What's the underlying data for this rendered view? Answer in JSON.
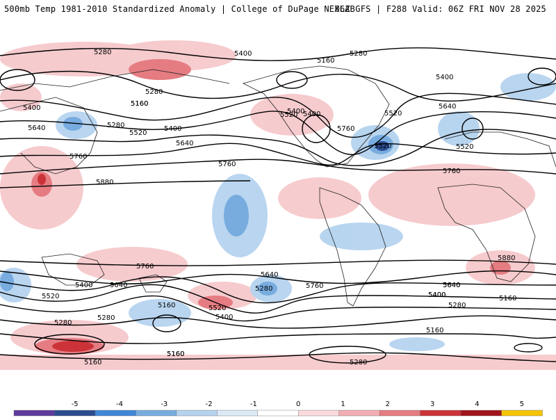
{
  "header": {
    "left": "500mb Temp 1981-2010 Standardized Anomaly | College of DuPage NEXLAB",
    "right": "06Z GFS | F288 Valid: 06Z FRI NOV 28 2025"
  },
  "contour_labels": [
    "5280",
    "5400",
    "5160",
    "5280",
    "5400",
    "5160",
    "5280",
    "5400",
    "5160",
    "5640",
    "5400",
    "5520",
    "5280",
    "5640",
    "5520",
    "5640",
    "5400",
    "5520",
    "5400",
    "5760",
    "5520",
    "5760",
    "5880",
    "5760",
    "5760",
    "5520",
    "5400",
    "5640",
    "5760",
    "5520",
    "5160",
    "5280",
    "5400",
    "5280",
    "5520",
    "5640",
    "5160",
    "5400",
    "5640",
    "5880",
    "5760",
    "5640",
    "5400",
    "5280",
    "5160",
    "5160",
    "5160",
    "5280",
    "5160",
    "5280"
  ],
  "colorbar": {
    "ticks": [
      "-5",
      "-4",
      "-3",
      "-2",
      "-1",
      "0",
      "1",
      "2",
      "3",
      "4",
      "5"
    ],
    "colors": [
      "#5e3b9c",
      "#2b4b8f",
      "#3f86d6",
      "#78acdf",
      "#b5d3ef",
      "#dce9f7",
      "#ffffff",
      "#fadadc",
      "#f2aeb2",
      "#e57c82",
      "#cc3338",
      "#a1141b",
      "#f5c400"
    ]
  }
}
